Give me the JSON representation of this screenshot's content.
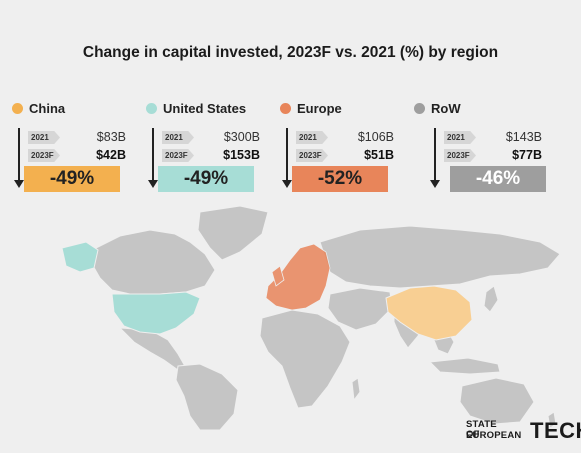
{
  "title": "Change in capital invested, 2023F vs. 2021 (%) by region",
  "colors": {
    "china": "#f3b04f",
    "us": "#a7ddd6",
    "europe": "#e8855a",
    "row": "#9e9e9e",
    "land": "#c5c5c5"
  },
  "chart_data": {
    "type": "table",
    "title": "Change in capital invested, 2023F vs. 2021 (%) by region",
    "regions": [
      {
        "name": "China",
        "y2021_label": "2021",
        "y2021": "$83B",
        "y2023_label": "2023F",
        "y2023": "$42B",
        "change": "-49%"
      },
      {
        "name": "United States",
        "y2021_label": "2021",
        "y2021": "$300B",
        "y2023_label": "2023F",
        "y2023": "$153B",
        "change": "-49%"
      },
      {
        "name": "Europe",
        "y2021_label": "2021",
        "y2021": "$106B",
        "y2023_label": "2023F",
        "y2023": "$51B",
        "change": "-52%"
      },
      {
        "name": "RoW",
        "y2021_label": "2021",
        "y2021": "$143B",
        "y2023_label": "2023F",
        "y2023": "$77B",
        "change": "-46%"
      }
    ]
  },
  "logo": {
    "line1": "STATE OF",
    "line2": "EUROPEAN",
    "word": "TECH"
  }
}
